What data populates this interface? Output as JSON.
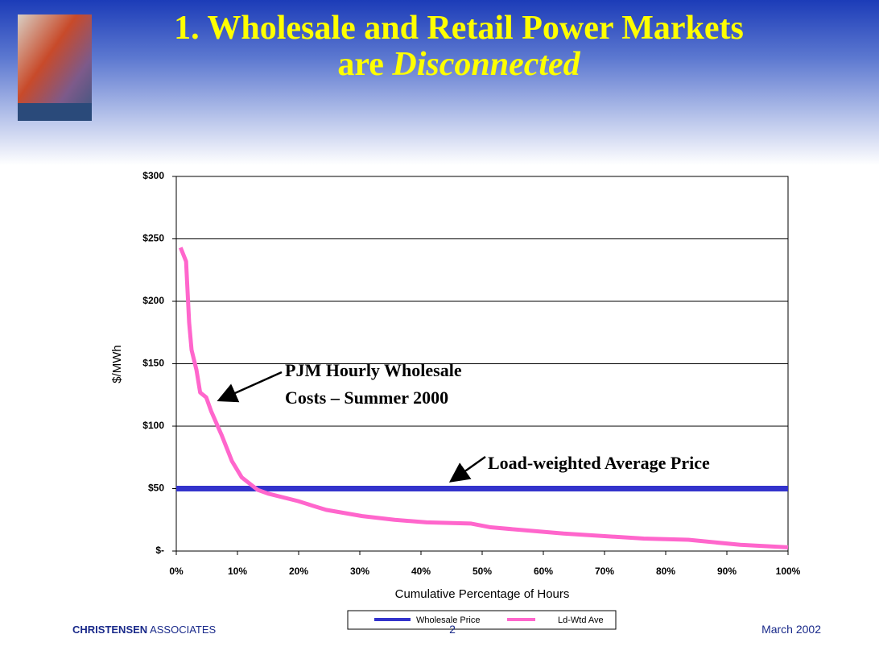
{
  "header": {
    "title_line1": "1. Wholesale and Retail Power Markets",
    "title_line2_prefix": "are",
    "title_line2_italic": "Disconnected"
  },
  "chart_data": {
    "type": "line",
    "xlabel": "Cumulative Percentage of Hours",
    "ylabel": "$/MWh",
    "series": [
      {
        "name": "Wholesale Price",
        "color": "#3333cc",
        "x": [
          0,
          100
        ],
        "values": [
          50,
          50
        ]
      },
      {
        "name": "Ld-Wtd Ave",
        "color": "#ff66cc",
        "x": [
          0.7,
          1.6,
          2.1,
          2.5,
          3.3,
          3.9,
          4.9,
          5.7,
          7.4,
          9.1,
          10.7,
          12,
          13.3,
          15,
          19.9,
          22.5,
          24.5,
          30.4,
          35.7,
          40.9,
          48.2,
          51.4,
          63.3,
          76.4,
          83.7,
          92.2,
          100
        ],
        "values": [
          243,
          232,
          183,
          161,
          145,
          127,
          123,
          112,
          93,
          72,
          59,
          54,
          49,
          46,
          40,
          36,
          33,
          28,
          25,
          23,
          22,
          19,
          14,
          10,
          9,
          5,
          3
        ]
      }
    ],
    "xlim": [
      0,
      100
    ],
    "xticks": [
      {
        "value": 0,
        "label": "0%"
      },
      {
        "value": 10,
        "label": "10%"
      },
      {
        "value": 20,
        "label": "20%"
      },
      {
        "value": 30,
        "label": "30%"
      },
      {
        "value": 40,
        "label": "40%"
      },
      {
        "value": 50,
        "label": "50%"
      },
      {
        "value": 60,
        "label": "60%"
      },
      {
        "value": 70,
        "label": "70%"
      },
      {
        "value": 80,
        "label": "80%"
      },
      {
        "value": 90,
        "label": "90%"
      },
      {
        "value": 100,
        "label": "100%"
      }
    ],
    "ylim": [
      0,
      300
    ],
    "yticks": [
      {
        "value": 0,
        "label": "$-"
      },
      {
        "value": 50,
        "label": "$50"
      },
      {
        "value": 100,
        "label": "$100"
      },
      {
        "value": 150,
        "label": "$150"
      },
      {
        "value": 200,
        "label": "$200"
      },
      {
        "value": 250,
        "label": "$250"
      },
      {
        "value": 300,
        "label": "$300"
      }
    ],
    "grid": true,
    "legend": "bottom",
    "annotations": [
      {
        "lines": [
          "PJM Hourly Wholesale",
          "Costs – Summer 2000"
        ]
      },
      {
        "lines": [
          "Load-weighted Average Price"
        ]
      }
    ]
  },
  "footer": {
    "company_bold": "CHRISTENSEN",
    "company_rest": "ASSOCIATES",
    "page": "2",
    "date": "March 2002"
  }
}
